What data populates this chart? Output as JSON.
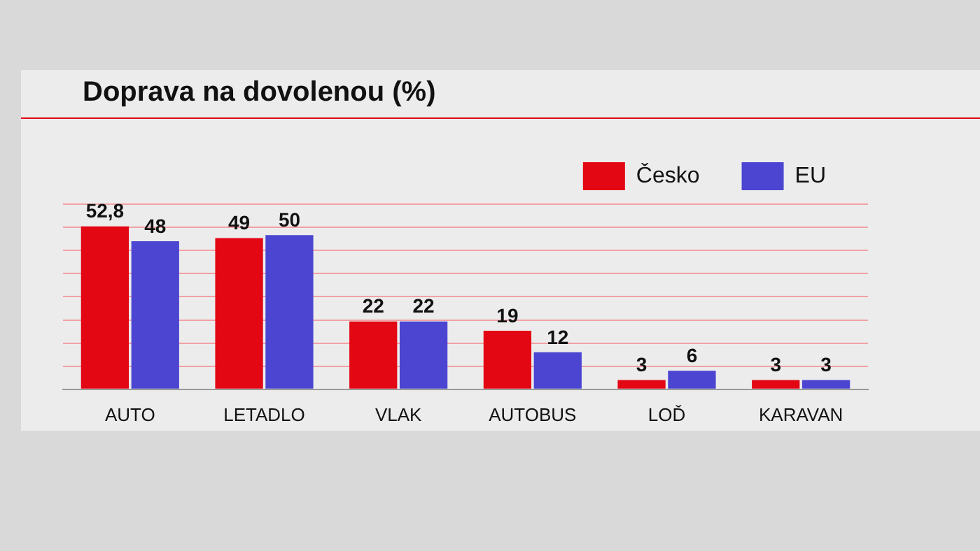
{
  "chart_data": {
    "type": "bar",
    "title": "Doprava na dovolenou (%)",
    "categories": [
      "AUTO",
      "LETADLO",
      "VLAK",
      "AUTOBUS",
      "LOĎ",
      "KARAVAN"
    ],
    "series": [
      {
        "name": "Česko",
        "color": "#e30613",
        "values": [
          52.8,
          49,
          22,
          19,
          3,
          3
        ],
        "value_labels": [
          "52,8",
          "49",
          "22",
          "19",
          "3",
          "3"
        ]
      },
      {
        "name": "EU",
        "color": "#4b45d1",
        "values": [
          48,
          50,
          22,
          12,
          6,
          3
        ],
        "value_labels": [
          "48",
          "50",
          "22",
          "12",
          "6",
          "3"
        ]
      }
    ],
    "ylim": [
      0,
      60
    ],
    "yticks": [
      {
        "value": 0,
        "label": null
      },
      {
        "value": 7.5,
        "label": null
      },
      {
        "value": 15,
        "label": null
      },
      {
        "value": 22.5,
        "label": null
      },
      {
        "value": 30,
        "label": null
      },
      {
        "value": 37.5,
        "label": null
      },
      {
        "value": 45,
        "label": null
      },
      {
        "value": 52.5,
        "label": null
      },
      {
        "value": 60,
        "label": null
      }
    ],
    "grid": "y",
    "legend": "top right",
    "tick_labels": "x"
  }
}
